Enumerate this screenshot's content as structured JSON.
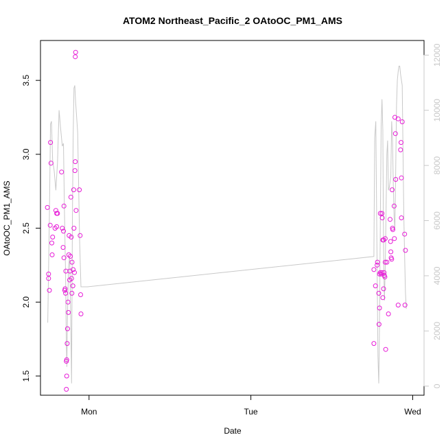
{
  "chart_data": {
    "type": "scatter",
    "title": "ATOM2 Northeast_Pacific_2 OAtoOC_PM1_AMS",
    "xlabel": "Date",
    "ylabel": "OAtoOC_PM1_AMS",
    "x_ticks": [
      {
        "x": 0,
        "label": "Mon"
      },
      {
        "x": 1,
        "label": "Tue"
      },
      {
        "x": 2,
        "label": "Wed"
      }
    ],
    "y_ticks": [
      1.5,
      2.0,
      2.5,
      3.0,
      3.5
    ],
    "y_tick_labels": [
      "1.5",
      "2.0",
      "2.5",
      "3.0",
      "3.5"
    ],
    "y2_ticks": [
      0,
      2000,
      4000,
      6000,
      8000,
      10000,
      12000
    ],
    "y2_tick_labels": [
      "0",
      "2000",
      "4000",
      "6000",
      "8000",
      "10000",
      "12000"
    ],
    "xlim": [
      -0.3,
      2.07
    ],
    "ylim": [
      1.37,
      3.77
    ],
    "y2lim": [
      -330,
      12530
    ],
    "grid": false,
    "colors": {
      "points": "#e619d6",
      "line": "#c8c8c8",
      "axis": "#000000",
      "axis2": "#c8c8c8"
    },
    "series": [
      {
        "kind": "points",
        "values": [
          [
            -0.257,
            2.64
          ],
          [
            -0.25,
            2.19
          ],
          [
            -0.25,
            2.16
          ],
          [
            -0.245,
            2.08
          ],
          [
            -0.24,
            2.52
          ],
          [
            -0.238,
            3.08
          ],
          [
            -0.235,
            2.94
          ],
          [
            -0.23,
            2.4
          ],
          [
            -0.228,
            2.32
          ],
          [
            -0.225,
            2.44
          ],
          [
            -0.21,
            2.5
          ],
          [
            -0.205,
            2.62
          ],
          [
            -0.2,
            2.51
          ],
          [
            -0.2,
            2.6
          ],
          [
            -0.195,
            2.6
          ],
          [
            -0.17,
            2.88
          ],
          [
            -0.165,
            2.5
          ],
          [
            -0.16,
            2.37
          ],
          [
            -0.158,
            2.48
          ],
          [
            -0.155,
            2.65
          ],
          [
            -0.155,
            2.3
          ],
          [
            -0.15,
            2.08
          ],
          [
            -0.148,
            2.09
          ],
          [
            -0.145,
            2.06
          ],
          [
            -0.143,
            2.21
          ],
          [
            -0.14,
            1.41
          ],
          [
            -0.14,
            1.6
          ],
          [
            -0.138,
            1.61
          ],
          [
            -0.138,
            1.5
          ],
          [
            -0.135,
            1.72
          ],
          [
            -0.133,
            1.82
          ],
          [
            -0.13,
            2.0
          ],
          [
            -0.128,
            1.93
          ],
          [
            -0.125,
            2.32
          ],
          [
            -0.123,
            2.45
          ],
          [
            -0.12,
            2.15
          ],
          [
            -0.118,
            2.21
          ],
          [
            -0.115,
            2.31
          ],
          [
            -0.112,
            2.71
          ],
          [
            -0.11,
            2.44
          ],
          [
            -0.108,
            2.16
          ],
          [
            -0.106,
            2.06
          ],
          [
            -0.105,
            2.27
          ],
          [
            -0.1,
            2.11
          ],
          [
            -0.098,
            2.22
          ],
          [
            -0.095,
            2.76
          ],
          [
            -0.093,
            2.5
          ],
          [
            -0.09,
            2.2
          ],
          [
            -0.085,
            3.66
          ],
          [
            -0.083,
            3.69
          ],
          [
            -0.085,
            2.95
          ],
          [
            -0.087,
            2.89
          ],
          [
            -0.08,
            2.62
          ],
          [
            -0.06,
            2.76
          ],
          [
            -0.055,
            2.45
          ],
          [
            -0.052,
            2.05
          ],
          [
            -0.05,
            1.92
          ],
          [
            1.76,
            2.22
          ],
          [
            1.76,
            1.72
          ],
          [
            1.77,
            2.11
          ],
          [
            1.78,
            2.25
          ],
          [
            1.782,
            2.27
          ],
          [
            1.79,
            2.06
          ],
          [
            1.792,
            1.85
          ],
          [
            1.795,
            1.96
          ],
          [
            1.795,
            2.19
          ],
          [
            1.8,
            2.2
          ],
          [
            1.8,
            2.6
          ],
          [
            1.805,
            2.19
          ],
          [
            1.81,
            2.2
          ],
          [
            1.81,
            2.6
          ],
          [
            1.812,
            2.57
          ],
          [
            1.815,
            2.42
          ],
          [
            1.815,
            2.03
          ],
          [
            1.82,
            2.09
          ],
          [
            1.82,
            2.42
          ],
          [
            1.823,
            2.2
          ],
          [
            1.825,
            2.18
          ],
          [
            1.828,
            2.17
          ],
          [
            1.83,
            2.43
          ],
          [
            1.83,
            2.27
          ],
          [
            1.833,
            1.68
          ],
          [
            1.84,
            2.27
          ],
          [
            1.85,
            1.92
          ],
          [
            1.86,
            2.56
          ],
          [
            1.863,
            2.41
          ],
          [
            1.865,
            2.34
          ],
          [
            1.867,
            2.3
          ],
          [
            1.87,
            2.29
          ],
          [
            1.873,
            2.76
          ],
          [
            1.875,
            2.5
          ],
          [
            1.877,
            2.49
          ],
          [
            1.885,
            2.65
          ],
          [
            1.887,
            2.43
          ],
          [
            1.89,
            3.25
          ],
          [
            1.893,
            3.14
          ],
          [
            1.895,
            2.83
          ],
          [
            1.91,
            3.24
          ],
          [
            1.91,
            1.98
          ],
          [
            1.925,
            3.03
          ],
          [
            1.928,
            3.08
          ],
          [
            1.93,
            2.84
          ],
          [
            1.93,
            2.57
          ],
          [
            1.935,
            3.22
          ],
          [
            1.95,
            2.46
          ],
          [
            1.952,
            1.98
          ],
          [
            1.955,
            2.35
          ]
        ]
      },
      {
        "kind": "line",
        "axis": "right",
        "values": [
          [
            -0.255,
            2300
          ],
          [
            -0.245,
            6200
          ],
          [
            -0.238,
            9500
          ],
          [
            -0.232,
            9600
          ],
          [
            -0.225,
            8200
          ],
          [
            -0.215,
            7800
          ],
          [
            -0.205,
            7100
          ],
          [
            -0.195,
            8100
          ],
          [
            -0.185,
            10000
          ],
          [
            -0.175,
            9300
          ],
          [
            -0.165,
            8700
          ],
          [
            -0.158,
            8800
          ],
          [
            -0.152,
            6400
          ],
          [
            -0.145,
            4000
          ],
          [
            -0.14,
            1500
          ],
          [
            -0.137,
            700
          ],
          [
            -0.133,
            2600
          ],
          [
            -0.127,
            4300
          ],
          [
            -0.12,
            4700
          ],
          [
            -0.113,
            2500
          ],
          [
            -0.108,
            100
          ],
          [
            -0.103,
            6000
          ],
          [
            -0.098,
            9000
          ],
          [
            -0.093,
            10800
          ],
          [
            -0.088,
            10900
          ],
          [
            -0.083,
            10300
          ],
          [
            -0.07,
            9200
          ],
          [
            -0.058,
            5200
          ],
          [
            -0.05,
            3600
          ],
          [
            -0.01,
            3600
          ],
          [
            1.76,
            4700
          ],
          [
            1.765,
            9000
          ],
          [
            1.772,
            9600
          ],
          [
            1.778,
            5700
          ],
          [
            1.785,
            1100
          ],
          [
            1.79,
            100
          ],
          [
            1.795,
            2200
          ],
          [
            1.8,
            6000
          ],
          [
            1.805,
            9400
          ],
          [
            1.81,
            10400
          ],
          [
            1.815,
            9300
          ],
          [
            1.82,
            5000
          ],
          [
            1.825,
            3100
          ],
          [
            1.83,
            4200
          ],
          [
            1.835,
            6300
          ],
          [
            1.84,
            8400
          ],
          [
            1.845,
            8900
          ],
          [
            1.85,
            7100
          ],
          [
            1.855,
            7200
          ],
          [
            1.86,
            7400
          ],
          [
            1.865,
            7600
          ],
          [
            1.87,
            9600
          ],
          [
            1.875,
            9000
          ],
          [
            1.88,
            7300
          ],
          [
            1.885,
            6100
          ],
          [
            1.89,
            5700
          ],
          [
            1.895,
            7800
          ],
          [
            1.9,
            10200
          ],
          [
            1.905,
            11100
          ],
          [
            1.91,
            11400
          ],
          [
            1.915,
            11600
          ],
          [
            1.92,
            11600
          ],
          [
            1.925,
            11300
          ],
          [
            1.93,
            11100
          ],
          [
            1.935,
            10900
          ],
          [
            1.94,
            8600
          ],
          [
            1.945,
            6200
          ],
          [
            1.95,
            4700
          ],
          [
            1.955,
            3400
          ],
          [
            1.96,
            2800
          ]
        ]
      }
    ]
  }
}
